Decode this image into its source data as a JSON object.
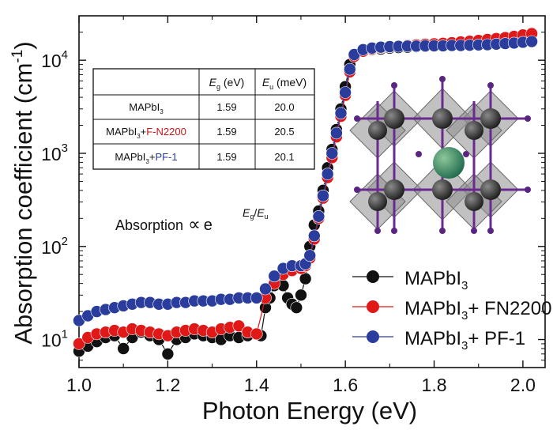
{
  "chart_data": {
    "type": "scatter",
    "xlabel": "Photon Energy (eV)",
    "ylabel": "Absorption coefficient (cm",
    "ylabel_sup": "-1",
    "ylabel_close": ")",
    "xlim": [
      1.0,
      2.05
    ],
    "ylim": [
      5,
      30000
    ],
    "yscale": "log",
    "x_ticks": [
      {
        "value": 1.0,
        "label": "1.0"
      },
      {
        "value": 1.2,
        "label": "1.2"
      },
      {
        "value": 1.4,
        "label": "1.4"
      },
      {
        "value": 1.6,
        "label": "1.6"
      },
      {
        "value": 1.8,
        "label": "1.8"
      },
      {
        "value": 2.0,
        "label": "2.0"
      }
    ],
    "y_ticks": [
      {
        "value": 10,
        "base": "10",
        "exp": "1"
      },
      {
        "value": 100,
        "base": "10",
        "exp": "2"
      },
      {
        "value": 1000,
        "base": "10",
        "exp": "3"
      },
      {
        "value": 10000,
        "base": "10",
        "exp": "4"
      }
    ],
    "legend": {
      "position": "bottom-right"
    },
    "series": [
      {
        "name": "MAPbI3",
        "label_main": "MAPbI",
        "label_sub": "3",
        "label_rest": "",
        "color": "#111111",
        "x": [
          1.0,
          1.02,
          1.04,
          1.06,
          1.08,
          1.1,
          1.12,
          1.14,
          1.16,
          1.18,
          1.2,
          1.22,
          1.24,
          1.26,
          1.28,
          1.3,
          1.32,
          1.34,
          1.36,
          1.38,
          1.4,
          1.41,
          1.42,
          1.43,
          1.44,
          1.45,
          1.46,
          1.47,
          1.48,
          1.49,
          1.5,
          1.51,
          1.52,
          1.53,
          1.54,
          1.55,
          1.56,
          1.57,
          1.58,
          1.59,
          1.6,
          1.61,
          1.62,
          1.64,
          1.66,
          1.68,
          1.7,
          1.72,
          1.74,
          1.76,
          1.78,
          1.8,
          1.82,
          1.84,
          1.86,
          1.88,
          1.9,
          1.92,
          1.94,
          1.96,
          1.98,
          2.0,
          2.02
        ],
        "y": [
          7.5,
          8.5,
          9.5,
          10.5,
          11,
          8,
          10.5,
          12,
          11,
          10,
          7,
          10,
          10.5,
          11.5,
          11,
          10.5,
          10,
          11,
          10.5,
          11,
          11.5,
          11,
          22,
          28,
          38,
          45,
          38,
          28,
          24,
          22,
          30,
          45,
          100,
          170,
          240,
          400,
          700,
          1100,
          1800,
          3000,
          5200,
          9000,
          11500,
          12500,
          13000,
          13200,
          13500,
          13700,
          13800,
          14000,
          14100,
          14200,
          14400,
          14700,
          15000,
          15300,
          15700,
          16000,
          16400,
          17000,
          17600,
          18300,
          19500
        ]
      },
      {
        "name": "MAPbI3+ FN2200",
        "label_main": "MAPbI",
        "label_sub": "3",
        "label_rest": "+ FN2200",
        "color": "#e01818",
        "x": [
          1.0,
          1.02,
          1.04,
          1.06,
          1.08,
          1.1,
          1.12,
          1.14,
          1.16,
          1.18,
          1.2,
          1.22,
          1.24,
          1.26,
          1.28,
          1.3,
          1.32,
          1.34,
          1.36,
          1.38,
          1.4,
          1.42,
          1.44,
          1.46,
          1.48,
          1.5,
          1.51,
          1.52,
          1.53,
          1.54,
          1.55,
          1.56,
          1.57,
          1.58,
          1.59,
          1.6,
          1.61,
          1.62,
          1.64,
          1.66,
          1.68,
          1.7,
          1.72,
          1.74,
          1.76,
          1.78,
          1.8,
          1.82,
          1.84,
          1.86,
          1.88,
          1.9,
          1.92,
          1.94,
          1.96,
          1.98,
          2.0,
          2.02
        ],
        "y": [
          9,
          10.5,
          11.5,
          12,
          12.5,
          12,
          13,
          12.5,
          12,
          11.5,
          11,
          12,
          12.5,
          13,
          12.5,
          12,
          13,
          13.5,
          14,
          12,
          11.5,
          28,
          40,
          50,
          55,
          58,
          62,
          75,
          120,
          200,
          330,
          550,
          900,
          1500,
          2500,
          4200,
          7500,
          11000,
          12500,
          13200,
          13600,
          13900,
          14200,
          14400,
          14600,
          14800,
          15000,
          15200,
          15400,
          15700,
          16000,
          16300,
          16700,
          17100,
          17500,
          18000,
          18700,
          19300
        ]
      },
      {
        "name": "MAPbI3+ PF-1",
        "label_main": "MAPbI",
        "label_sub": "3",
        "label_rest": "+ PF-1",
        "color": "#2b3d9c",
        "x": [
          1.0,
          1.02,
          1.04,
          1.06,
          1.08,
          1.1,
          1.12,
          1.14,
          1.16,
          1.18,
          1.2,
          1.22,
          1.24,
          1.26,
          1.28,
          1.3,
          1.32,
          1.34,
          1.36,
          1.38,
          1.4,
          1.42,
          1.44,
          1.46,
          1.48,
          1.5,
          1.51,
          1.52,
          1.53,
          1.54,
          1.55,
          1.56,
          1.57,
          1.58,
          1.59,
          1.6,
          1.61,
          1.62,
          1.64,
          1.66,
          1.68,
          1.7,
          1.72,
          1.74,
          1.76,
          1.78,
          1.8,
          1.82,
          1.84,
          1.86,
          1.88,
          1.9,
          1.92,
          1.94,
          1.96,
          1.98,
          2.0,
          2.02
        ],
        "y": [
          16,
          18,
          20,
          21,
          22,
          23,
          24,
          25,
          25,
          24,
          24,
          25,
          25,
          26,
          26,
          26,
          27,
          27,
          28,
          28,
          28,
          35,
          48,
          58,
          62,
          62,
          65,
          80,
          130,
          210,
          350,
          600,
          1000,
          1650,
          2700,
          4500,
          8000,
          11500,
          13000,
          13500,
          13800,
          14000,
          14100,
          14200,
          14200,
          14300,
          14300,
          14300,
          14400,
          14400,
          14500,
          14600,
          14700,
          14900,
          15100,
          15300,
          15600,
          15900
        ]
      }
    ]
  },
  "table": {
    "header": {
      "eg_main": "E",
      "eg_sub": "g",
      "eg_unit": " (eV)",
      "eu_main": "E",
      "eu_sub": "u",
      "eu_unit": " (meV)"
    },
    "rows": [
      {
        "pre": "MAPbI",
        "sub": "3",
        "plus": "",
        "extra": "",
        "eg": "1.59",
        "eu": "20.0"
      },
      {
        "pre": "MAPbI",
        "sub": "3",
        "plus": "+",
        "extra": "F-N2200",
        "extra_color": "#c81414",
        "eg": "1.59",
        "eu": "20.5"
      },
      {
        "pre": "MAPbI",
        "sub": "3",
        "plus": "+",
        "extra": "PF-1",
        "extra_color": "#2b3d9c",
        "eg": "1.59",
        "eu": "20.1"
      }
    ]
  },
  "formula": {
    "text": "Absorption",
    "prop": "∝",
    "base": "e",
    "exp_num_main": "E",
    "exp_num_sub": "g",
    "slash": "/",
    "exp_den_main": "E",
    "exp_den_sub": "u"
  },
  "inset": {
    "description_icon": "perovskite-crystal-structure-icon"
  }
}
